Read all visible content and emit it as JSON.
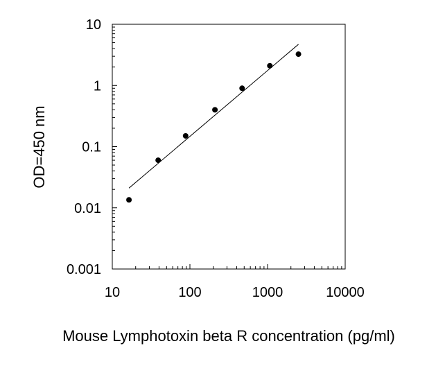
{
  "chart_data": {
    "type": "scatter",
    "title": "",
    "xlabel": "Mouse Lymphotoxin beta R concentration (pg/ml)",
    "ylabel": "OD=450 nm",
    "x_scale": "log",
    "y_scale": "log",
    "xlim": [
      10,
      10000
    ],
    "ylim": [
      0.001,
      10
    ],
    "x_ticks": [
      "10",
      "100",
      "1000",
      "10000"
    ],
    "y_ticks": [
      "0.001",
      "0.01",
      "0.1",
      "1",
      "10"
    ],
    "grid": false,
    "legend": "none",
    "series": [
      {
        "x": [
          16.4,
          39,
          88,
          210,
          470,
          1070,
          2500
        ],
        "y": [
          0.0135,
          0.06,
          0.15,
          0.4,
          0.9,
          2.1,
          3.25
        ]
      }
    ],
    "fit_line": {
      "x": [
        16.4,
        2500
      ],
      "y": [
        0.021,
        4.7
      ]
    }
  },
  "colors": {
    "marker": "#000000",
    "line": "#000000",
    "axis": "#000000"
  }
}
